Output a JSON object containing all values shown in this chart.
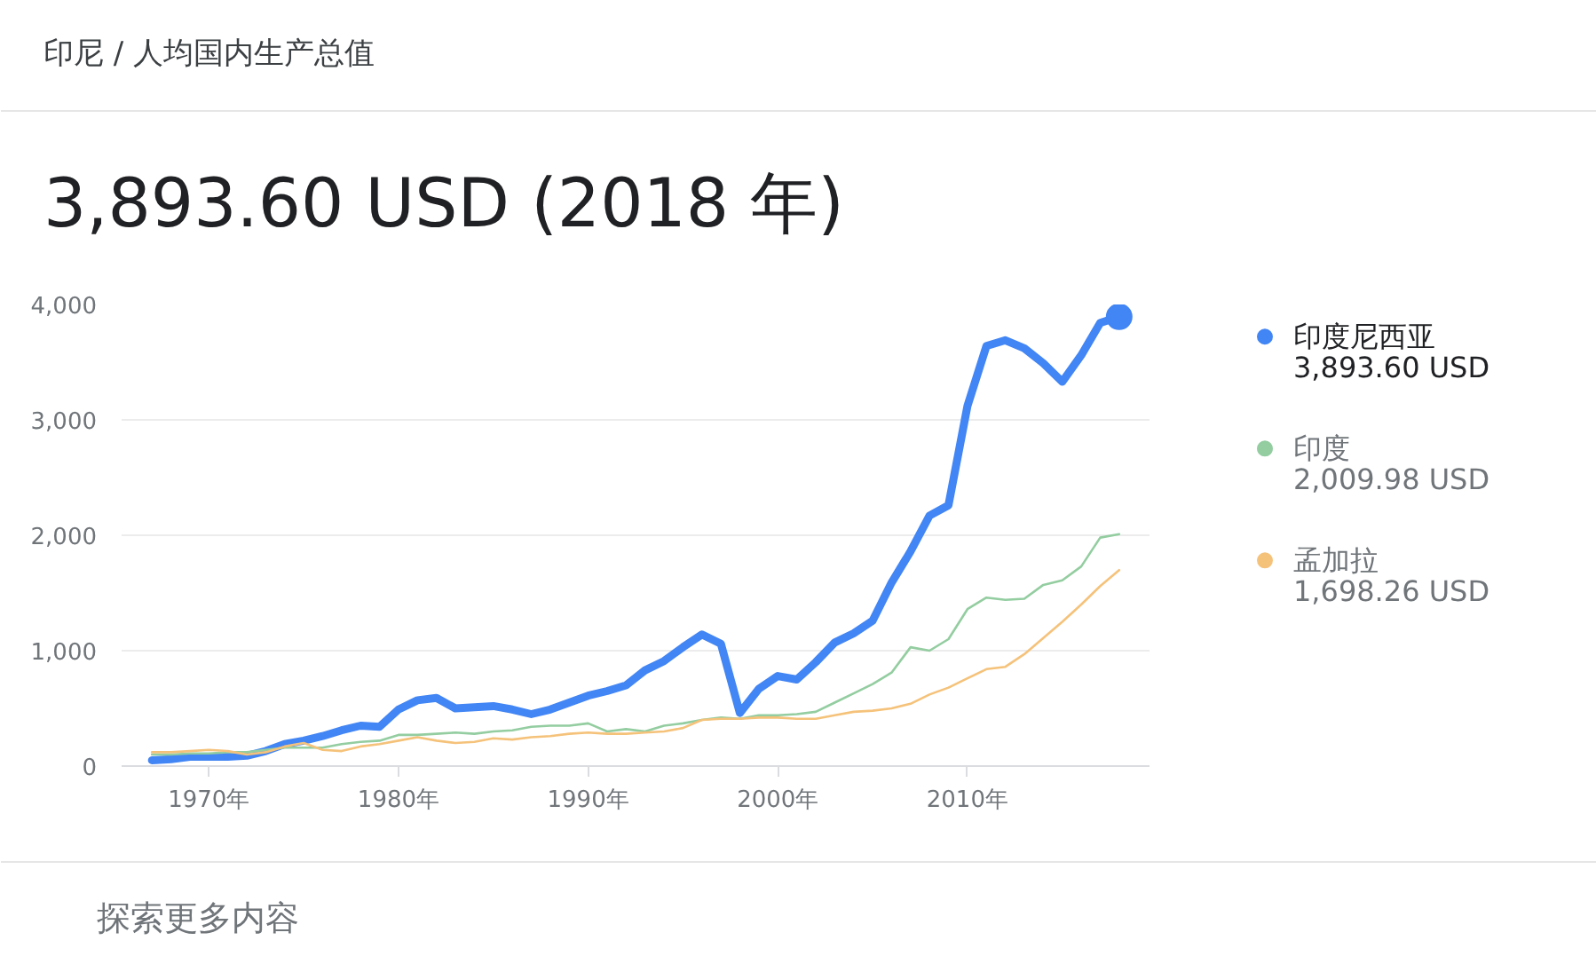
{
  "chart_data": {
    "type": "line",
    "subtitle": "印尼 / 人均国内生产总值",
    "title": "3,893.60 USD (2018 年)",
    "x": [
      1967,
      1968,
      1969,
      1970,
      1971,
      1972,
      1973,
      1974,
      1975,
      1976,
      1977,
      1978,
      1979,
      1980,
      1981,
      1982,
      1983,
      1984,
      1985,
      1986,
      1987,
      1988,
      1989,
      1990,
      1991,
      1992,
      1993,
      1994,
      1995,
      1996,
      1997,
      1998,
      1999,
      2000,
      2001,
      2002,
      2003,
      2004,
      2005,
      2006,
      2007,
      2008,
      2009,
      2010,
      2011,
      2012,
      2013,
      2014,
      2015,
      2016,
      2017,
      2018
    ],
    "series": [
      {
        "name": "印度尼西亚",
        "color": "#4285f4",
        "values": [
          50,
          60,
          80,
          80,
          80,
          90,
          130,
          190,
          220,
          260,
          310,
          350,
          340,
          490,
          570,
          590,
          500,
          510,
          520,
          490,
          450,
          490,
          550,
          610,
          650,
          700,
          830,
          910,
          1030,
          1140,
          1060,
          460,
          670,
          780,
          750,
          900,
          1070,
          1150,
          1260,
          1590,
          1860,
          2170,
          2260,
          3120,
          3640,
          3690,
          3620,
          3490,
          3330,
          3560,
          3840,
          3893.6
        ]
      },
      {
        "name": "印度",
        "color": "#93cda0",
        "values": [
          100,
          100,
          110,
          110,
          120,
          120,
          140,
          160,
          160,
          160,
          190,
          210,
          220,
          270,
          270,
          280,
          290,
          280,
          300,
          310,
          340,
          350,
          350,
          370,
          300,
          320,
          300,
          350,
          370,
          400,
          420,
          410,
          440,
          440,
          450,
          470,
          550,
          630,
          710,
          810,
          1030,
          1000,
          1100,
          1360,
          1460,
          1440,
          1450,
          1570,
          1610,
          1730,
          1980,
          2009.98
        ]
      },
      {
        "name": "孟加拉",
        "color": "#f5c27a",
        "values": [
          120,
          120,
          130,
          140,
          130,
          100,
          120,
          170,
          200,
          140,
          130,
          170,
          190,
          220,
          250,
          220,
          200,
          210,
          240,
          230,
          250,
          260,
          280,
          290,
          280,
          280,
          290,
          300,
          330,
          400,
          410,
          410,
          420,
          420,
          410,
          410,
          440,
          470,
          480,
          500,
          540,
          620,
          680,
          760,
          840,
          860,
          970,
          1110,
          1250,
          1400,
          1560,
          1698.26
        ]
      },
      {
        "type": "scatter",
        "color": "#4285f4",
        "x": [
          2018
        ],
        "values": [
          3893.6
        ]
      }
    ],
    "xlim": [
      1965.4,
      2019.6
    ],
    "xticks": [
      {
        "value": 1970,
        "label": "1970年"
      },
      {
        "value": 1980,
        "label": "1980年"
      },
      {
        "value": 1990,
        "label": "1990年"
      },
      {
        "value": 2000,
        "label": "2000年"
      },
      {
        "value": 2010,
        "label": "2010年"
      }
    ],
    "ylim": [
      0,
      4000
    ],
    "yticks": [
      0,
      {
        "value": 1000,
        "label": "1,000"
      },
      {
        "value": 2000,
        "label": "2,000"
      },
      {
        "value": 3000,
        "label": "3,000"
      },
      {
        "value": 4000,
        "label": "4,000"
      }
    ],
    "grid": "y",
    "legend": "right",
    "annotations": [
      "3,893.60 USD",
      "2,009.98 USD",
      "1,698.26 USD",
      "探索更多内容"
    ]
  }
}
